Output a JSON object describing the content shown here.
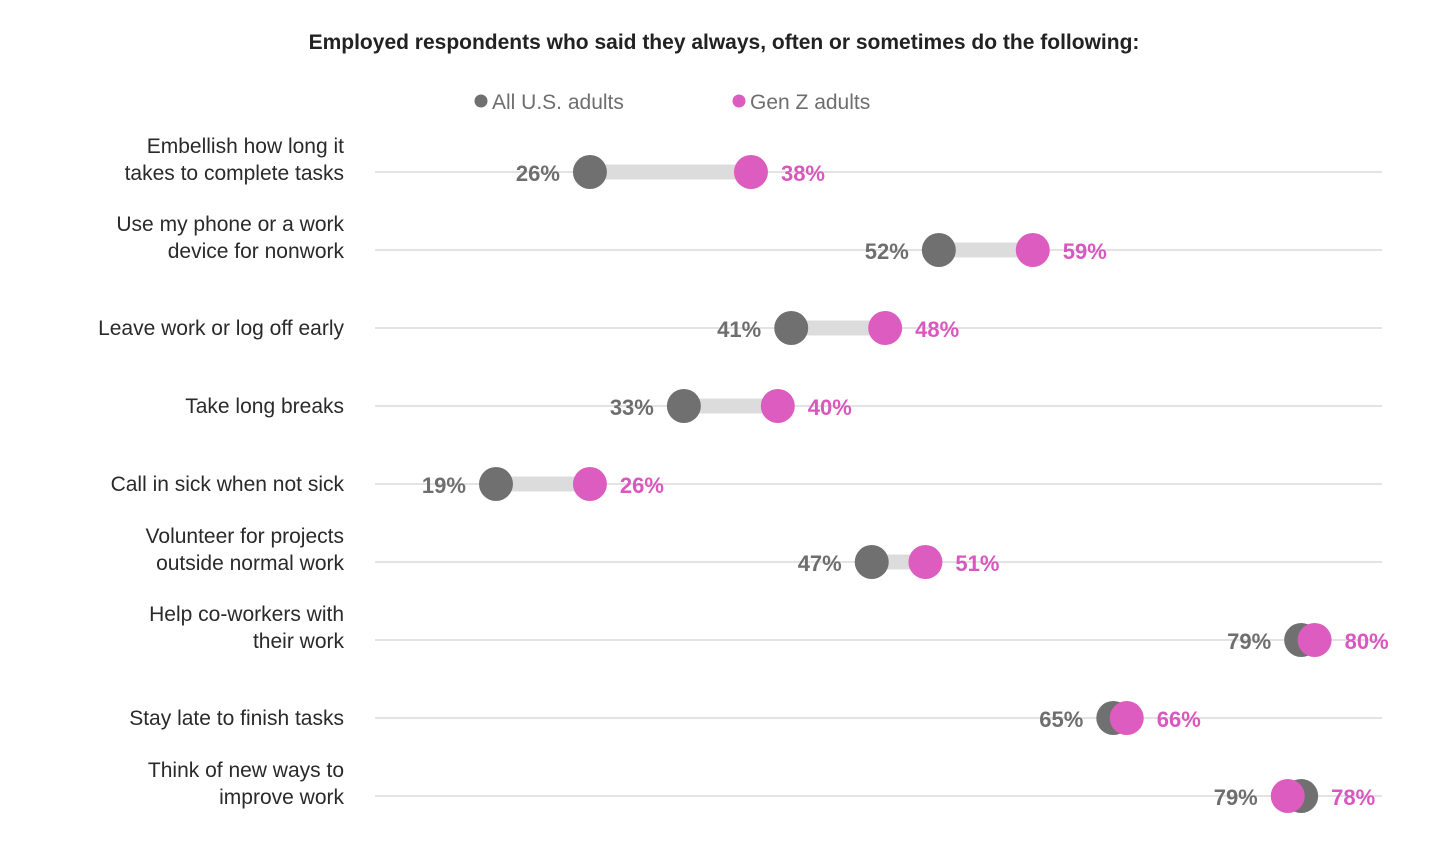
{
  "chart_data": {
    "type": "dumbbell",
    "title": "Employed respondents who said they always, often or sometimes do the following:",
    "legend": {
      "placement": "top",
      "entries": [
        "All U.S. adults",
        "Gen Z adults"
      ]
    },
    "colors": {
      "all_us": "#707070",
      "gen_z": "#dd5cc0",
      "connector": "#dcdcdc",
      "grid": "#e3e3e3"
    },
    "xlim": [
      0,
      100
    ],
    "unit": "%",
    "categories": [
      [
        "Embellish how long it",
        "takes to complete tasks"
      ],
      [
        "Use my phone or a work",
        "device for nonwork"
      ],
      [
        "Leave work or log off early"
      ],
      [
        "Take long breaks"
      ],
      [
        "Call in sick when not sick"
      ],
      [
        "Volunteer for projects",
        "outside normal work"
      ],
      [
        "Help co-workers with",
        "their work"
      ],
      [
        "Stay late to finish tasks"
      ],
      [
        "Think of new ways to",
        "improve work"
      ]
    ],
    "series": [
      {
        "name": "All U.S. adults",
        "values": [
          26,
          52,
          41,
          33,
          19,
          47,
          79,
          65,
          79
        ]
      },
      {
        "name": "Gen Z adults",
        "values": [
          38,
          59,
          48,
          40,
          26,
          51,
          80,
          66,
          78
        ]
      }
    ]
  }
}
